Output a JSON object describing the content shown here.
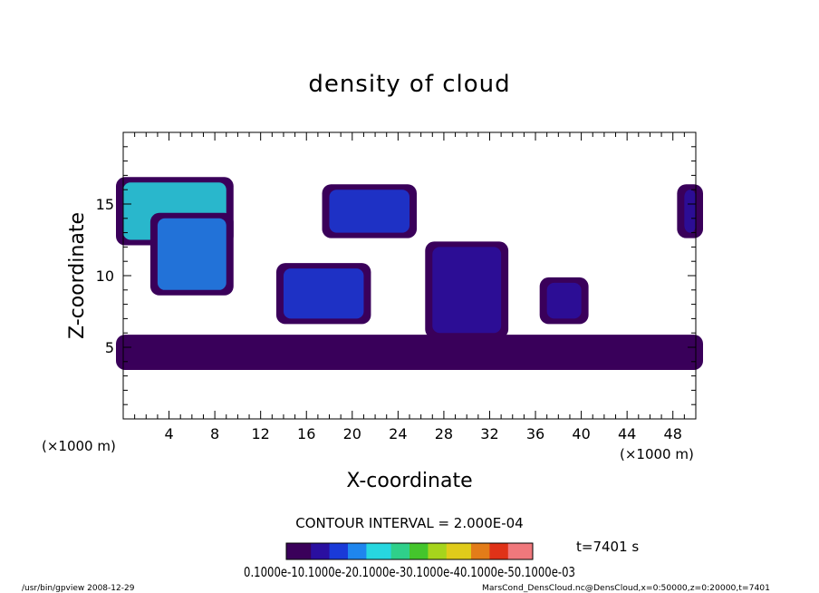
{
  "chart_data": {
    "type": "heatmap",
    "title": "density of cloud",
    "xlabel": "X-coordinate",
    "ylabel": "Z-coordinate",
    "x_unit_left": "(×1000 m)",
    "x_unit_right": "(×1000 m)",
    "xlim": [
      0,
      50
    ],
    "ylim": [
      0,
      20
    ],
    "xticks": [
      "4",
      "8",
      "12",
      "16",
      "20",
      "24",
      "28",
      "32",
      "36",
      "40",
      "44",
      "48"
    ],
    "xtick_values": [
      4,
      8,
      12,
      16,
      20,
      24,
      28,
      32,
      36,
      40,
      44,
      48
    ],
    "yticks": [
      "5",
      "10",
      "15"
    ],
    "ytick_values": [
      5,
      10,
      15
    ],
    "contour_interval": "CONTOUR INTERVAL = 2.000E-04",
    "time_label": "t=7401 s",
    "colorbar_labels": "0.1000e-10.1000e-20.1000e-30.1000e-40.1000e-50.1000e-03",
    "colorbar_range": [
      0,
      0.001
    ],
    "colorbar_colors": [
      "#3a005a",
      "#2a0fa0",
      "#1a3ad8",
      "#1f86ee",
      "#27d7e0",
      "#2fd08a",
      "#44c52c",
      "#a6d41c",
      "#e0cb1a",
      "#e37c19",
      "#e03218",
      "#f0787c"
    ],
    "cloud_regions": [
      {
        "x": [
          0,
          9
        ],
        "z": [
          12.5,
          16.5
        ],
        "level": 0.00034
      },
      {
        "x": [
          3,
          9
        ],
        "z": [
          9,
          14
        ],
        "level": 0.00025
      },
      {
        "x": [
          18,
          25
        ],
        "z": [
          13,
          16
        ],
        "level": 0.00018
      },
      {
        "x": [
          14,
          21
        ],
        "z": [
          7,
          10.5
        ],
        "level": 0.00022
      },
      {
        "x": [
          27,
          33
        ],
        "z": [
          6,
          12
        ],
        "level": 0.00016
      },
      {
        "x": [
          37,
          40
        ],
        "z": [
          7,
          9.5
        ],
        "level": 0.00012
      },
      {
        "x": [
          49,
          50
        ],
        "z": [
          13,
          16
        ],
        "level": 0.00012
      },
      {
        "x": [
          0,
          50
        ],
        "z": [
          3.8,
          5.5
        ],
        "level": 6e-05
      }
    ],
    "footer_left": "/usr/bin/gpview   2008-12-29",
    "footer_right": "MarsCond_DensCloud.nc@DensCloud,x=0:50000,z=0:20000,t=7401"
  }
}
